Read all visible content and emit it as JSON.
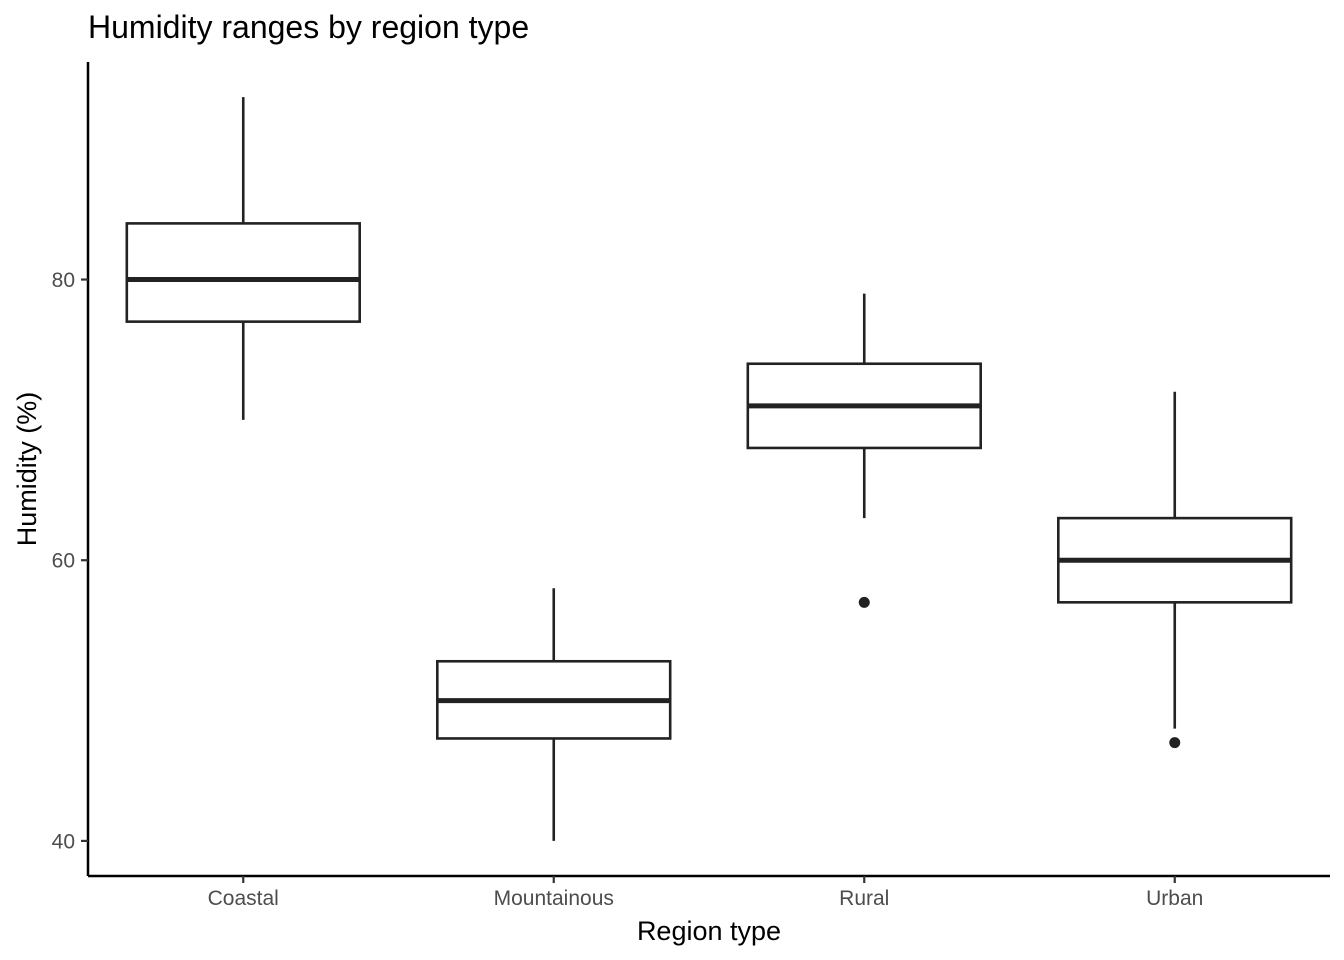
{
  "chart_data": {
    "type": "boxplot",
    "title": "Humidity ranges by region type",
    "xlabel": "Region type",
    "ylabel": "Humidity (%)",
    "categories": [
      "Coastal",
      "Mountainous",
      "Rural",
      "Urban"
    ],
    "boxes": [
      {
        "category": "Coastal",
        "whisker_low": 70,
        "q1": 77,
        "median": 80,
        "q3": 84,
        "whisker_high": 93,
        "outliers": []
      },
      {
        "category": "Mountainous",
        "whisker_low": 40,
        "q1": 47.3,
        "median": 50,
        "q3": 52.8,
        "whisker_high": 58,
        "outliers": []
      },
      {
        "category": "Rural",
        "whisker_low": 63,
        "q1": 68,
        "median": 71,
        "q3": 74,
        "whisker_high": 79,
        "outliers": [
          57
        ]
      },
      {
        "category": "Urban",
        "whisker_low": 48,
        "q1": 57,
        "median": 60,
        "q3": 63,
        "whisker_high": 72,
        "outliers": [
          47
        ]
      }
    ],
    "y_ticks": [
      40,
      60,
      80
    ],
    "ylim": [
      37.5,
      95.5
    ],
    "grid": false,
    "legend": "none",
    "colors": {
      "box_stroke": "#222222",
      "box_fill": "#ffffff",
      "tick_label": "#4d4d4d",
      "axis": "#000000"
    }
  }
}
